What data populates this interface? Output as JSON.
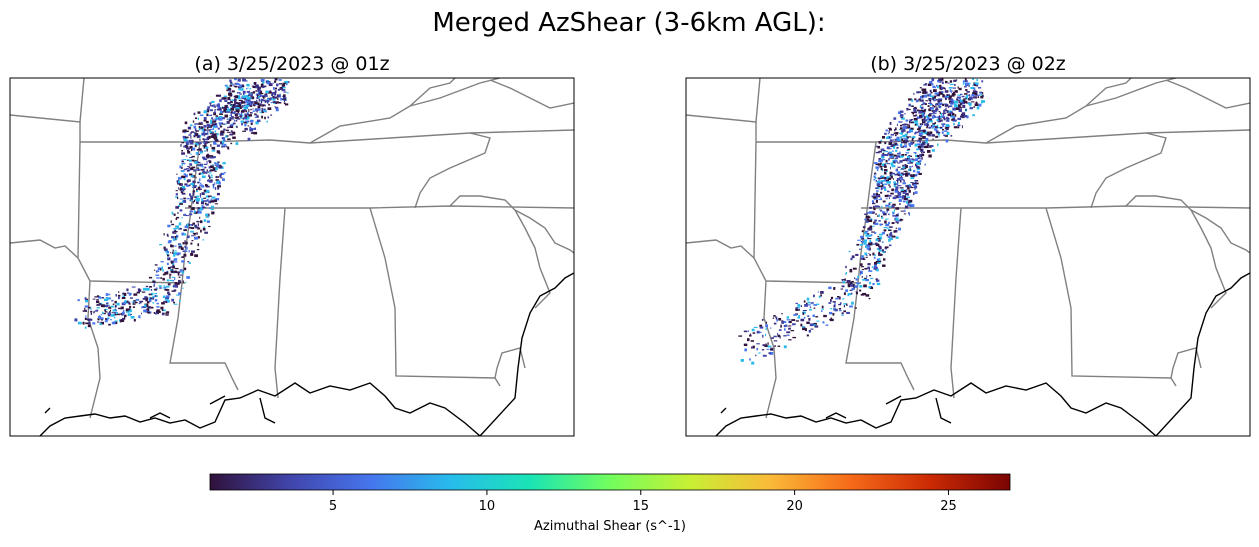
{
  "title": "Merged AzShear (3-6km AGL):",
  "panels": [
    {
      "title": "(a) 3/25/2023 @ 01z"
    },
    {
      "title": "(b) 3/25/2023 @ 02z"
    }
  ],
  "colorbar": {
    "label": "Azimuthal Shear (s^-1)",
    "lim": [
      1,
      27
    ],
    "ticks": [
      5,
      10,
      15,
      20,
      25
    ],
    "colormap": "turbo"
  }
}
